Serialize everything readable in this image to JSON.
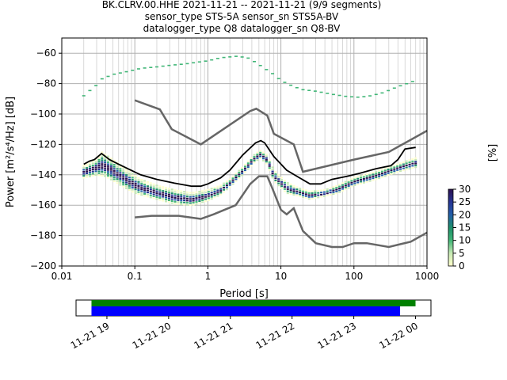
{
  "title_lines": [
    "BK.CLRV.00.HHE   2021-11-21 -- 2021-11-21  (9/9 segments)",
    "sensor_type STS-5A sensor_sn STS5A-BV",
    "datalogger_type Q8 datalogger_sn Q8-BV"
  ],
  "chart_data": [
    {
      "type": "heatmap",
      "xlabel": "Period [s]",
      "ylabel": "Power [m²/s⁴/Hz] [dB]",
      "xscale": "log",
      "xlim": [
        0.01,
        1000
      ],
      "ylim": [
        -200,
        -50
      ],
      "x_ticks": [
        0.01,
        0.1,
        1,
        10,
        100,
        1000
      ],
      "x_tick_labels": [
        "0.01",
        "0.1",
        "1",
        "10",
        "100",
        "1000"
      ],
      "y_ticks": [
        -200,
        -180,
        -160,
        -140,
        -120,
        -100,
        -80,
        -60
      ],
      "grid": true,
      "colorbar": {
        "label": "[%]",
        "range": [
          0,
          30
        ],
        "ticks": [
          0,
          5,
          10,
          15,
          20,
          25,
          30
        ],
        "colors": [
          "#ffffcc",
          "#c7e9b4",
          "#41b677",
          "#1d8f6a",
          "#225ea8",
          "#253494",
          "#2b0f4f"
        ]
      },
      "model_curves": {
        "color": "#666666",
        "high_noise_model": [
          [
            0.1,
            -91
          ],
          [
            0.22,
            -97
          ],
          [
            0.32,
            -110
          ],
          [
            0.8,
            -120
          ],
          [
            3.8,
            -98
          ],
          [
            4.6,
            -96.5
          ],
          [
            6.5,
            -101
          ],
          [
            8,
            -113
          ],
          [
            15,
            -120
          ],
          [
            20,
            -138
          ],
          [
            100,
            -130
          ],
          [
            300,
            -125
          ],
          [
            1000,
            -111
          ]
        ],
        "low_noise_model": [
          [
            0.1,
            -168
          ],
          [
            0.17,
            -167
          ],
          [
            0.4,
            -167
          ],
          [
            0.8,
            -169
          ],
          [
            1.2,
            -166
          ],
          [
            2.4,
            -160
          ],
          [
            3.8,
            -146
          ],
          [
            5,
            -141
          ],
          [
            6.5,
            -141
          ],
          [
            7.5,
            -148
          ],
          [
            10,
            -163
          ],
          [
            12,
            -166
          ],
          [
            15,
            -162
          ],
          [
            20,
            -177
          ],
          [
            30,
            -185
          ],
          [
            50,
            -187.5
          ],
          [
            70,
            -187.5
          ],
          [
            100,
            -185
          ],
          [
            150,
            -185
          ],
          [
            300,
            -187.5
          ],
          [
            600,
            -184
          ],
          [
            1000,
            -178
          ]
        ]
      },
      "mean_curve": {
        "color": "#000000",
        "points": [
          [
            0.02,
            -133
          ],
          [
            0.024,
            -131
          ],
          [
            0.028,
            -130
          ],
          [
            0.035,
            -126
          ],
          [
            0.045,
            -130
          ],
          [
            0.06,
            -133
          ],
          [
            0.08,
            -136
          ],
          [
            0.12,
            -140
          ],
          [
            0.2,
            -143
          ],
          [
            0.35,
            -145.5
          ],
          [
            0.6,
            -147.5
          ],
          [
            0.8,
            -147.5
          ],
          [
            1,
            -146
          ],
          [
            1.5,
            -142
          ],
          [
            2,
            -137
          ],
          [
            3,
            -127
          ],
          [
            4.5,
            -119
          ],
          [
            5.3,
            -117.5
          ],
          [
            6,
            -119
          ],
          [
            8,
            -128
          ],
          [
            12,
            -137
          ],
          [
            18,
            -142
          ],
          [
            25,
            -146
          ],
          [
            35,
            -146
          ],
          [
            50,
            -143
          ],
          [
            80,
            -141
          ],
          [
            120,
            -139
          ],
          [
            200,
            -136
          ],
          [
            320,
            -134
          ],
          [
            400,
            -130
          ],
          [
            500,
            -123
          ],
          [
            700,
            -122
          ]
        ]
      },
      "ppsd_bands": {
        "high_band": [
          [
            0.02,
            -88
          ],
          [
            0.025,
            -84
          ],
          [
            0.03,
            -81
          ],
          [
            0.035,
            -77
          ],
          [
            0.05,
            -74
          ],
          [
            0.08,
            -72
          ],
          [
            0.12,
            -70
          ],
          [
            0.2,
            -69
          ],
          [
            0.3,
            -68
          ],
          [
            0.5,
            -67
          ],
          [
            0.7,
            -66
          ],
          [
            1,
            -65
          ],
          [
            1.5,
            -63
          ],
          [
            2.5,
            -62
          ],
          [
            3.5,
            -63
          ],
          [
            4.5,
            -66
          ],
          [
            6,
            -70
          ],
          [
            8,
            -74
          ],
          [
            10,
            -78
          ],
          [
            15,
            -82
          ],
          [
            20,
            -84
          ],
          [
            30,
            -85
          ],
          [
            50,
            -87
          ],
          [
            80,
            -88.5
          ],
          [
            120,
            -89
          ],
          [
            170,
            -88
          ],
          [
            250,
            -86
          ],
          [
            400,
            -82
          ],
          [
            700,
            -78
          ]
        ],
        "main_band_top": [
          [
            0.02,
            -134
          ],
          [
            0.03,
            -130
          ],
          [
            0.035,
            -125
          ],
          [
            0.05,
            -130
          ],
          [
            0.08,
            -137
          ],
          [
            0.12,
            -143
          ],
          [
            0.2,
            -147
          ],
          [
            0.35,
            -150
          ],
          [
            0.6,
            -152
          ],
          [
            1,
            -150
          ],
          [
            1.5,
            -147
          ],
          [
            2,
            -143
          ],
          [
            3,
            -135
          ],
          [
            4.5,
            -126
          ],
          [
            5.3,
            -124
          ],
          [
            6.5,
            -127
          ],
          [
            8,
            -137
          ],
          [
            12,
            -145
          ],
          [
            18,
            -149
          ],
          [
            25,
            -151
          ],
          [
            40,
            -150
          ],
          [
            60,
            -147
          ],
          [
            100,
            -142
          ],
          [
            200,
            -138
          ],
          [
            400,
            -133
          ],
          [
            700,
            -129
          ]
        ],
        "main_band_bottom": [
          [
            0.02,
            -142
          ],
          [
            0.03,
            -140
          ],
          [
            0.04,
            -141
          ],
          [
            0.06,
            -146
          ],
          [
            0.1,
            -152
          ],
          [
            0.2,
            -156
          ],
          [
            0.35,
            -159
          ],
          [
            0.6,
            -160
          ],
          [
            1,
            -157
          ],
          [
            1.5,
            -153
          ],
          [
            2,
            -148
          ],
          [
            3,
            -140
          ],
          [
            4.5,
            -131
          ],
          [
            5.3,
            -129
          ],
          [
            6.5,
            -133
          ],
          [
            8,
            -144
          ],
          [
            12,
            -152
          ],
          [
            18,
            -154
          ],
          [
            25,
            -156
          ],
          [
            40,
            -154
          ],
          [
            60,
            -152
          ],
          [
            100,
            -147
          ],
          [
            200,
            -143
          ],
          [
            400,
            -138
          ],
          [
            700,
            -135
          ]
        ]
      }
    },
    {
      "type": "timeline",
      "x_tick_labels": [
        "11-21 19",
        "11-21 20",
        "11-21 21",
        "11-21 22",
        "11-21 23",
        "11-22 00"
      ],
      "data_bar": {
        "color": "#008000",
        "start_hour": 18.75,
        "end_hour": 24.0
      },
      "segments_bar": {
        "color": "#0000ff",
        "start_hour": 18.75,
        "end_hour": 23.75
      },
      "xlim_hours": [
        18.5,
        24.25
      ]
    }
  ]
}
